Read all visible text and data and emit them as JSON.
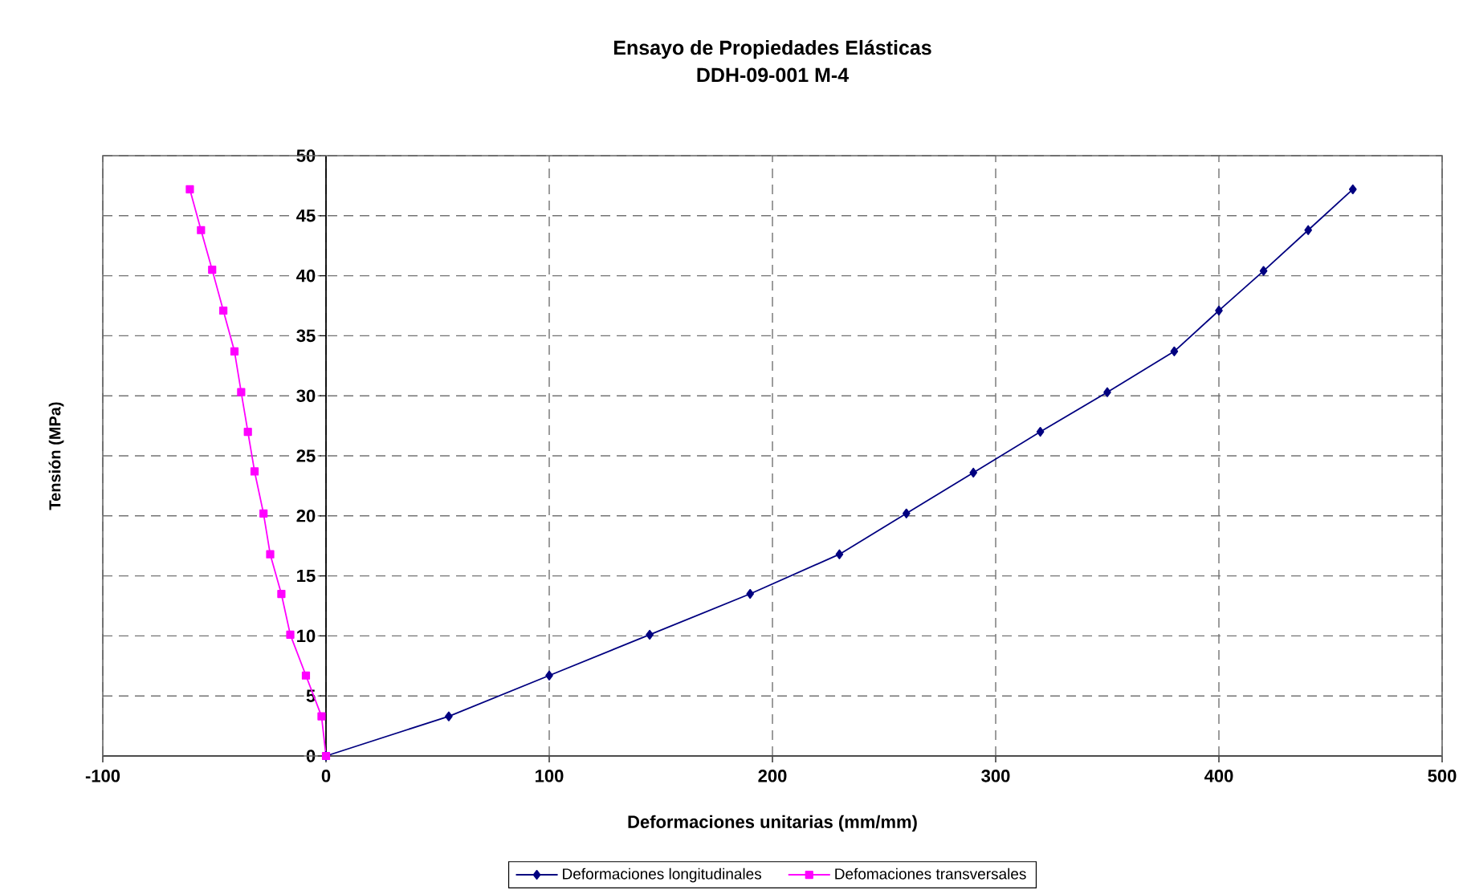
{
  "chart_data": {
    "type": "line",
    "title": "Ensayo de Propiedades Elásticas",
    "subtitle": "DDH-09-001 M-4",
    "xlabel": "Deformaciones unitarias (mm/mm)",
    "ylabel": "Tensión (MPa)",
    "xlim": [
      -100,
      500
    ],
    "ylim": [
      0,
      50
    ],
    "xticks": [
      -100,
      0,
      100,
      200,
      300,
      400,
      500
    ],
    "yticks": [
      0,
      5,
      10,
      15,
      20,
      25,
      30,
      35,
      40,
      45,
      50
    ],
    "grid": true,
    "legend": "bottom",
    "series": [
      {
        "name": "Deformaciones longitudinales",
        "color": "#000080",
        "marker": "diamond",
        "x": [
          0,
          55,
          100,
          145,
          190,
          230,
          260,
          290,
          320,
          350,
          380,
          400,
          420,
          440,
          460
        ],
        "values": [
          0,
          3.3,
          6.7,
          10.1,
          13.5,
          16.8,
          20.2,
          23.6,
          27.0,
          30.3,
          33.7,
          37.1,
          40.4,
          43.8,
          47.2
        ]
      },
      {
        "name": "Defomaciones transversales",
        "color": "#ff00ff",
        "marker": "square",
        "x": [
          0,
          -2,
          -9,
          -16,
          -20,
          -25,
          -28,
          -32,
          -35,
          -38,
          -41,
          -46,
          -51,
          -56,
          -61
        ],
        "values": [
          0,
          3.3,
          6.7,
          10.1,
          13.5,
          16.8,
          20.2,
          23.7,
          27.0,
          30.3,
          33.7,
          37.1,
          40.5,
          43.8,
          47.2
        ]
      }
    ]
  }
}
